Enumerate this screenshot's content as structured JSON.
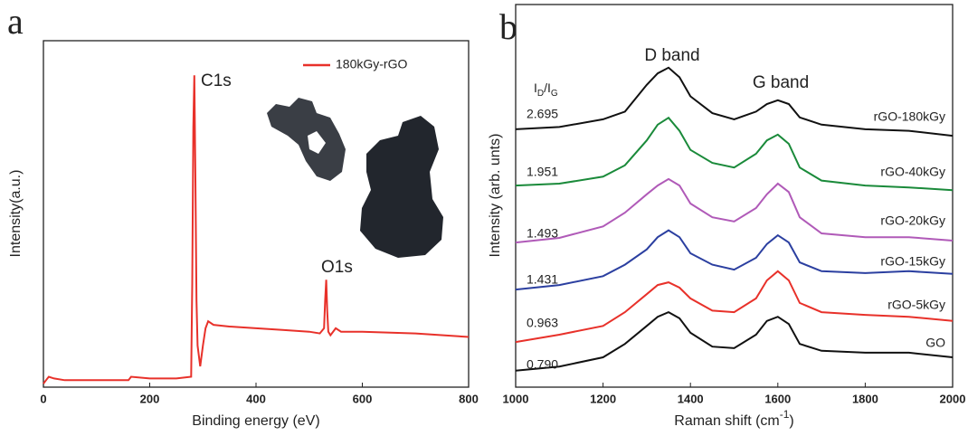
{
  "chart_data": [
    {
      "type": "line",
      "panel": "a",
      "xlabel": "Binding energy (eV)",
      "ylabel": "Intensity(a.u.)",
      "xlim": [
        0,
        800
      ],
      "xticks": [
        0,
        200,
        400,
        600,
        800
      ],
      "ylim": [
        0,
        100
      ],
      "legend": "upper right",
      "annotations": [
        "C1s",
        "O1s"
      ],
      "x": [
        0,
        5,
        10,
        20,
        40,
        100,
        160,
        165,
        200,
        250,
        278,
        280,
        282,
        284,
        286,
        288,
        290,
        295,
        300,
        305,
        310,
        320,
        350,
        400,
        450,
        500,
        520,
        528,
        530,
        532,
        534,
        536,
        540,
        550,
        560,
        600,
        700,
        800
      ],
      "series": [
        {
          "name": "180kGy-rGO",
          "color": "#e8312a",
          "values": [
            1,
            2,
            3,
            2.5,
            2,
            2,
            2,
            3,
            2.5,
            2.5,
            3,
            30,
            75,
            90,
            60,
            25,
            12,
            6,
            12,
            17,
            19,
            18,
            17.5,
            17,
            16.5,
            16,
            15.5,
            17,
            25,
            31,
            22,
            16,
            15,
            17,
            16,
            16,
            15.5,
            14.5
          ]
        }
      ]
    },
    {
      "type": "line",
      "panel": "b",
      "xlabel": [
        "Raman shift (cm",
        "-1",
        ")"
      ],
      "ylabel": "Intensity (arb. unts)",
      "xlim": [
        1000,
        2000
      ],
      "xticks": [
        1000,
        1200,
        1400,
        1600,
        1800,
        2000
      ],
      "ylim": [
        0,
        100
      ],
      "annotations": [
        "D band",
        "G band"
      ],
      "ratio_header": [
        "I",
        "D",
        "/I",
        "G"
      ],
      "x": [
        1000,
        1100,
        1200,
        1250,
        1300,
        1325,
        1350,
        1375,
        1400,
        1450,
        1500,
        1550,
        1575,
        1600,
        1625,
        1650,
        1700,
        1800,
        1900,
        2000
      ],
      "series": [
        {
          "name": "rGO-180kGy",
          "ratio": "2.695",
          "color": "#111111",
          "values": [
            67.4,
            68,
            70,
            72,
            79,
            82,
            83.5,
            81,
            76,
            71.6,
            70,
            72,
            74,
            75,
            74,
            70.5,
            68.6,
            67.4,
            67,
            65.7
          ]
        },
        {
          "name": "rGO-40kGy",
          "ratio": "1.951",
          "color": "#1a8a3a",
          "values": [
            52.7,
            53.2,
            55,
            58,
            64.5,
            68.6,
            70.4,
            67,
            62,
            58.6,
            57.4,
            61,
            64.5,
            66,
            63.6,
            57.4,
            54,
            52.7,
            52.2,
            51.5
          ]
        },
        {
          "name": "rGO-20kGy",
          "ratio": "1.493",
          "color": "#b05ab8",
          "values": [
            37.8,
            39,
            42,
            45.6,
            50.4,
            52.7,
            54.4,
            52.7,
            48,
            44.4,
            43.3,
            46.8,
            50.4,
            53.2,
            51,
            44.4,
            40.2,
            39.2,
            39.2,
            38.3
          ]
        },
        {
          "name": "rGO-15kGy",
          "ratio": "1.431",
          "color": "#2b3fa0",
          "values": [
            25.5,
            26.7,
            29,
            32,
            36,
            39.2,
            41,
            39.2,
            35,
            32,
            30.7,
            33.8,
            37.4,
            39.7,
            37.8,
            32.6,
            30.3,
            29.8,
            30.3,
            29.6
          ]
        },
        {
          "name": "rGO-5kGy",
          "ratio": "0.963",
          "color": "#e8312a",
          "values": [
            11.8,
            13.7,
            16,
            19.6,
            24.3,
            26.7,
            27.4,
            26,
            23.2,
            20,
            19.6,
            23.2,
            27.9,
            30.3,
            27.9,
            22,
            19.6,
            18.9,
            18.4,
            17.3
          ]
        },
        {
          "name": "GO",
          "ratio": "0.790",
          "color": "#111111",
          "values": [
            4.3,
            5.4,
            7.8,
            11.3,
            16,
            18.4,
            19.6,
            18,
            14.2,
            10.6,
            10.2,
            13.7,
            17.3,
            18.4,
            16.5,
            11.3,
            9.5,
            9,
            9,
            7.8
          ]
        }
      ]
    }
  ]
}
